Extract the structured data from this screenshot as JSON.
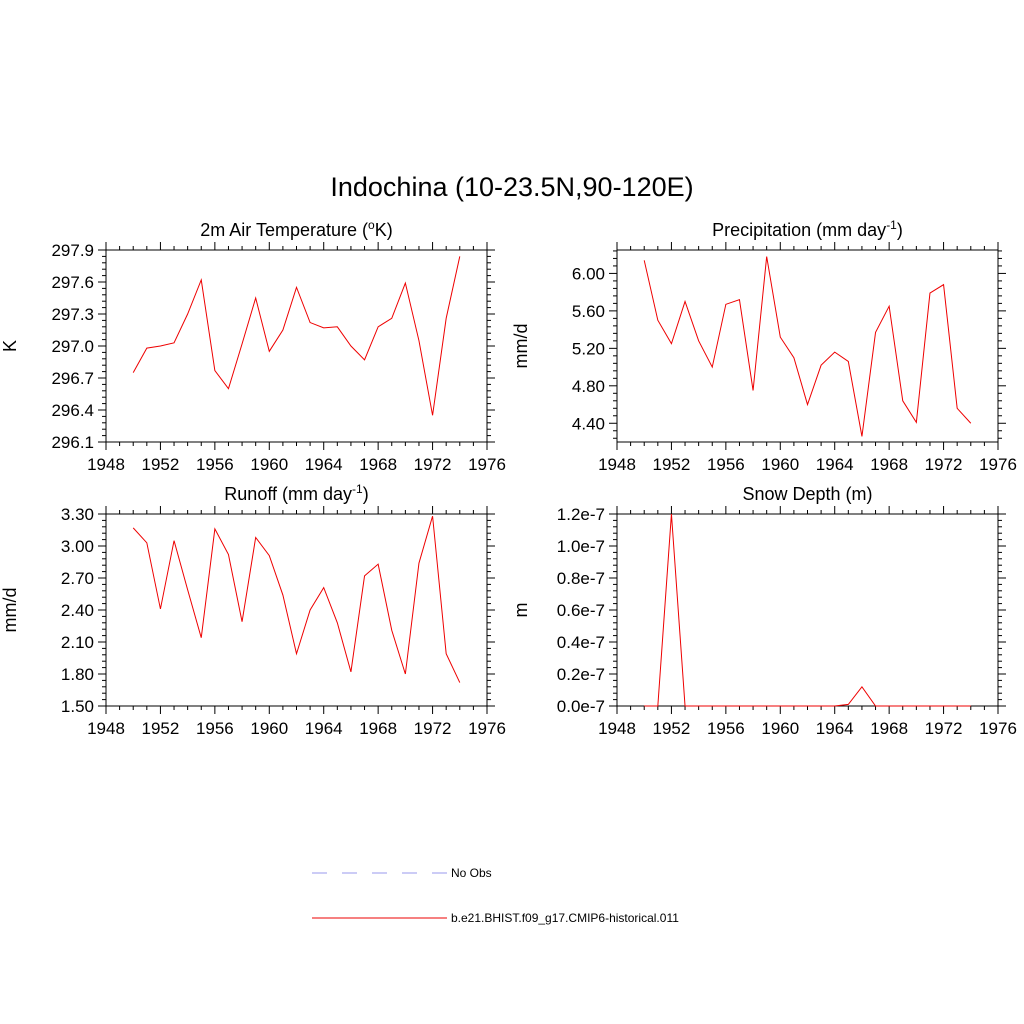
{
  "figure": {
    "title": "Indochina (10-23.5N,90-120E)"
  },
  "legend": {
    "entries": [
      {
        "label": "No Obs",
        "color": "#9999ee",
        "dash": "dashed"
      },
      {
        "label": "b.e21.BHIST.f09_g17.CMIP6-historical.011",
        "color": "#ee0000",
        "dash": "solid"
      }
    ]
  },
  "chart_data": [
    {
      "type": "line",
      "title": "2m Air Temperature (°K)",
      "title_parts": {
        "pre": "2m Air Temperature (",
        "sup": "o",
        "post": "K)"
      },
      "ylabel": "K",
      "xlim": [
        1948,
        1976
      ],
      "ylim": [
        296.1,
        297.9
      ],
      "xticks": [
        1948,
        1952,
        1956,
        1960,
        1964,
        1968,
        1972,
        1976
      ],
      "yticks": [
        "296.1",
        "296.4",
        "296.7",
        "297.0",
        "297.3",
        "297.6",
        "297.9"
      ],
      "series": [
        {
          "color": "#ee0000",
          "x": [
            1950,
            1951,
            1952,
            1953,
            1954,
            1955,
            1956,
            1957,
            1958,
            1959,
            1960,
            1961,
            1962,
            1963,
            1964,
            1965,
            1966,
            1967,
            1968,
            1969,
            1970,
            1971,
            1972,
            1973,
            1974
          ],
          "y": [
            296.75,
            296.98,
            297.0,
            297.03,
            297.3,
            297.62,
            296.77,
            296.6,
            297.02,
            297.45,
            296.95,
            297.15,
            297.55,
            297.22,
            297.17,
            297.18,
            297.0,
            296.87,
            297.18,
            297.26,
            297.59,
            297.05,
            296.35,
            297.26,
            297.84
          ]
        }
      ]
    },
    {
      "type": "line",
      "title": "Precipitation (mm day-1)",
      "title_parts": {
        "pre": "Precipitation (mm day",
        "sup": "-1",
        "post": ")"
      },
      "ylabel": "mm/d",
      "xlim": [
        1948,
        1976
      ],
      "ylim": [
        4.2,
        6.25
      ],
      "xticks": [
        1948,
        1952,
        1956,
        1960,
        1964,
        1968,
        1972,
        1976
      ],
      "yticks": [
        "4.40",
        "4.80",
        "5.20",
        "5.60",
        "6.00"
      ],
      "series": [
        {
          "color": "#ee0000",
          "x": [
            1950,
            1951,
            1952,
            1953,
            1954,
            1955,
            1956,
            1957,
            1958,
            1959,
            1960,
            1961,
            1962,
            1963,
            1964,
            1965,
            1966,
            1967,
            1968,
            1969,
            1970,
            1971,
            1972,
            1973,
            1974
          ],
          "y": [
            6.14,
            5.5,
            5.25,
            5.7,
            5.28,
            5.0,
            5.67,
            5.72,
            4.75,
            6.18,
            5.32,
            5.1,
            4.6,
            5.02,
            5.16,
            5.06,
            4.26,
            5.37,
            5.65,
            4.64,
            4.41,
            5.79,
            5.88,
            4.56,
            4.4
          ]
        }
      ]
    },
    {
      "type": "line",
      "title": "Runoff (mm day-1)",
      "title_parts": {
        "pre": "Runoff (mm day",
        "sup": "-1",
        "post": ")"
      },
      "ylabel": "mm/d",
      "xlim": [
        1948,
        1976
      ],
      "ylim": [
        1.5,
        3.3
      ],
      "xticks": [
        1948,
        1952,
        1956,
        1960,
        1964,
        1968,
        1972,
        1976
      ],
      "yticks": [
        "1.50",
        "1.80",
        "2.10",
        "2.40",
        "2.70",
        "3.00",
        "3.30"
      ],
      "series": [
        {
          "color": "#ee0000",
          "x": [
            1950,
            1951,
            1952,
            1953,
            1954,
            1955,
            1956,
            1957,
            1958,
            1959,
            1960,
            1961,
            1962,
            1963,
            1964,
            1965,
            1966,
            1967,
            1968,
            1969,
            1970,
            1971,
            1972,
            1973,
            1974
          ],
          "y": [
            3.17,
            3.03,
            2.41,
            3.05,
            2.59,
            2.14,
            3.16,
            2.92,
            2.29,
            3.08,
            2.91,
            2.54,
            1.99,
            2.4,
            2.61,
            2.28,
            1.82,
            2.72,
            2.83,
            2.21,
            1.8,
            2.84,
            3.28,
            1.99,
            1.72
          ]
        }
      ]
    },
    {
      "type": "line",
      "title": "Snow Depth (m)",
      "title_parts": {
        "pre": "Snow Depth (m)",
        "sup": "",
        "post": ""
      },
      "ylabel": "m",
      "xlim": [
        1948,
        1976
      ],
      "ylim": [
        0,
        1.2e-07
      ],
      "xticks": [
        1948,
        1952,
        1956,
        1960,
        1964,
        1968,
        1972,
        1976
      ],
      "yticks": [
        "0.0e-7",
        "0.2e-7",
        "0.4e-7",
        "0.6e-7",
        "0.8e-7",
        "1.0e-7",
        "1.2e-7"
      ],
      "series": [
        {
          "color": "#ee0000",
          "x": [
            1950,
            1951,
            1952,
            1953,
            1954,
            1955,
            1956,
            1957,
            1958,
            1959,
            1960,
            1961,
            1962,
            1963,
            1964,
            1965,
            1966,
            1967,
            1968,
            1969,
            1970,
            1971,
            1972,
            1973,
            1974
          ],
          "y": [
            0,
            0,
            1.2e-07,
            0,
            0,
            0,
            0,
            0,
            0,
            0,
            0,
            0,
            0,
            0,
            0,
            1e-09,
            1.2e-08,
            0,
            0,
            0,
            0,
            0,
            0,
            0,
            0
          ]
        }
      ]
    }
  ]
}
